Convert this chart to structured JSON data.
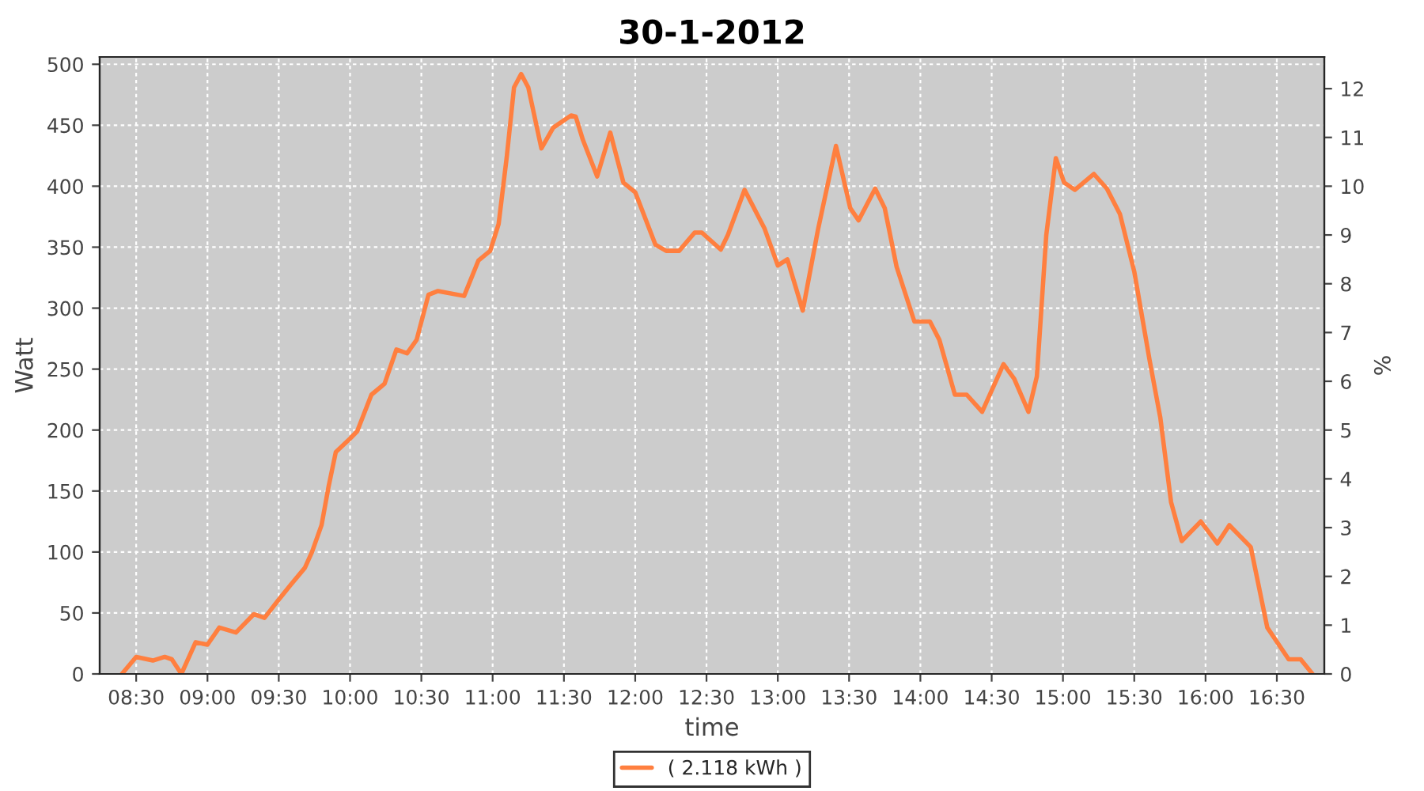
{
  "chart_data": {
    "type": "line",
    "title": "30-1-2012",
    "xlabel": "time",
    "ylabel": "Watt",
    "y2label": "%",
    "xlim": [
      8.244,
      16.833
    ],
    "ylim": [
      0,
      506
    ],
    "y2lim": [
      0,
      12.65
    ],
    "xticks": [
      {
        "value": 8.5,
        "label": "08:30"
      },
      {
        "value": 9.0,
        "label": "09:00"
      },
      {
        "value": 9.5,
        "label": "09:30"
      },
      {
        "value": 10.0,
        "label": "10:00"
      },
      {
        "value": 10.5,
        "label": "10:30"
      },
      {
        "value": 11.0,
        "label": "11:00"
      },
      {
        "value": 11.5,
        "label": "11:30"
      },
      {
        "value": 12.0,
        "label": "12:00"
      },
      {
        "value": 12.5,
        "label": "12:30"
      },
      {
        "value": 13.0,
        "label": "13:00"
      },
      {
        "value": 13.5,
        "label": "13:30"
      },
      {
        "value": 14.0,
        "label": "14:00"
      },
      {
        "value": 14.5,
        "label": "14:30"
      },
      {
        "value": 15.0,
        "label": "15:00"
      },
      {
        "value": 15.5,
        "label": "15:30"
      },
      {
        "value": 16.0,
        "label": "16:00"
      },
      {
        "value": 16.5,
        "label": "16:30"
      }
    ],
    "yticks": [
      0,
      50,
      100,
      150,
      200,
      250,
      300,
      350,
      400,
      450,
      500
    ],
    "y2ticks": [
      0,
      1,
      2,
      3,
      4,
      5,
      6,
      7,
      8,
      9,
      10,
      11,
      12
    ],
    "grid": true,
    "legend": "bottom",
    "marker": "none",
    "line_style": "solid",
    "series": [
      {
        "name": "( 2.118 kWh )",
        "color": "#ff7f3f",
        "x": [
          8.4,
          8.5,
          8.617,
          8.7,
          8.75,
          8.817,
          8.917,
          9.0,
          9.083,
          9.2,
          9.325,
          9.4,
          9.5,
          9.583,
          9.683,
          9.733,
          9.8,
          9.85,
          9.9,
          10.0,
          10.05,
          10.15,
          10.242,
          10.325,
          10.4,
          10.467,
          10.55,
          10.617,
          10.8,
          10.9,
          10.983,
          11.042,
          11.1,
          11.15,
          11.2,
          11.25,
          11.342,
          11.425,
          11.55,
          11.583,
          11.633,
          11.733,
          11.825,
          11.917,
          12.0,
          12.142,
          12.217,
          12.308,
          12.417,
          12.467,
          12.6,
          12.65,
          12.767,
          12.908,
          13.0,
          13.067,
          13.175,
          13.283,
          13.408,
          13.508,
          13.567,
          13.683,
          13.75,
          13.833,
          13.958,
          14.067,
          14.133,
          14.242,
          14.325,
          14.433,
          14.583,
          14.658,
          14.758,
          14.817,
          14.883,
          14.95,
          15.008,
          15.083,
          15.217,
          15.308,
          15.4,
          15.5,
          15.608,
          15.683,
          15.758,
          15.833,
          15.967,
          16.083,
          16.167,
          16.317,
          16.433,
          16.583,
          16.667,
          16.75
        ],
        "values": [
          0,
          14,
          11,
          14,
          12,
          0,
          26,
          24,
          38,
          34,
          49,
          46,
          61,
          73,
          87,
          100,
          122,
          154,
          182,
          193,
          199,
          229,
          238,
          266,
          263,
          274,
          311,
          314,
          310,
          339,
          347,
          369,
          425,
          481,
          492,
          481,
          431,
          448,
          458,
          457,
          438,
          408,
          444,
          403,
          395,
          352,
          347,
          347,
          362,
          362,
          348,
          360,
          397,
          365,
          335,
          340,
          298,
          365,
          433,
          382,
          372,
          398,
          382,
          334,
          289,
          289,
          274,
          229,
          229,
          215,
          254,
          242,
          215,
          244,
          360,
          423,
          403,
          397,
          410,
          398,
          377,
          330,
          257,
          210,
          141,
          109,
          125,
          107,
          122,
          104,
          38,
          12,
          12,
          0
        ]
      }
    ]
  }
}
